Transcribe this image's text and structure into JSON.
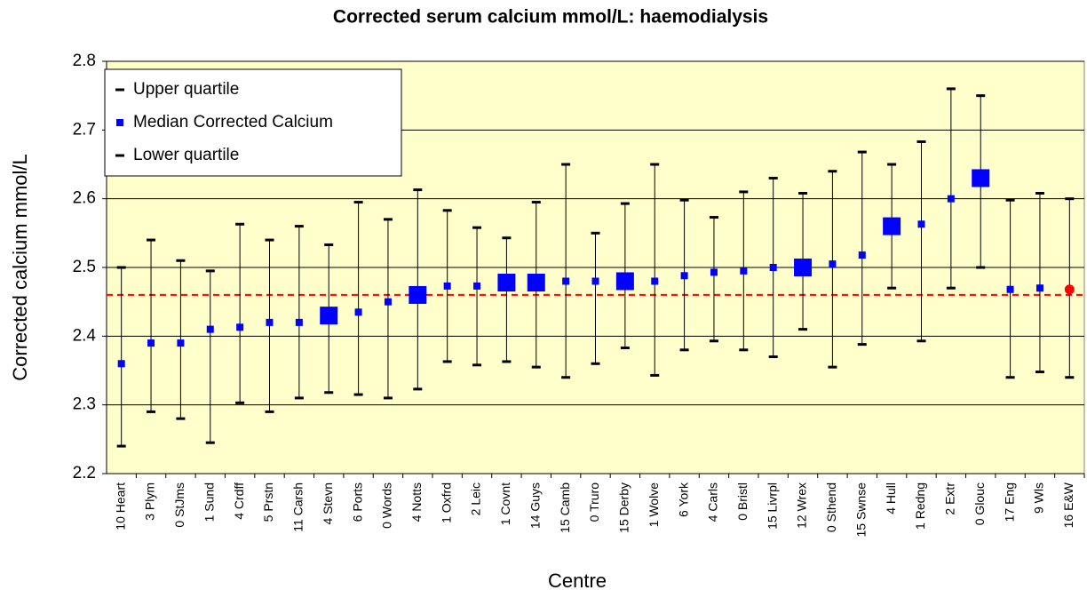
{
  "chart_data": {
    "type": "errorbar",
    "title": "Corrected serum calcium mmol/L: haemodialysis",
    "x_label": "Centre",
    "y_label": "Corrected calcium mmol/L",
    "categories": [
      "10 Heart",
      "3 Plym",
      "0 StJms",
      "1 Sund",
      "4 Crdff",
      "5 Prstn",
      "11 Carsh",
      "4 Stevn",
      "6 Ports",
      "0 Words",
      "4 Notts",
      "1 Oxfrd",
      "2 Leic",
      "1 Covnt",
      "14 Guys",
      "15 Camb",
      "0 Truro",
      "15 Derby",
      "1 Wolve",
      "6 York",
      "4 Carls",
      "0 Bristl",
      "15 Livrpl",
      "12 Wrex",
      "0 Sthend",
      "15 Swnse",
      "4 Hull",
      "1 Redng",
      "2 Extr",
      "0 Glouc",
      "17 Eng",
      "9 Wls",
      "16 E&W"
    ],
    "series": [
      {
        "name": "Upper quartile",
        "color": "#000000",
        "values": [
          2.5,
          2.54,
          2.51,
          2.495,
          2.563,
          2.54,
          2.56,
          2.533,
          2.595,
          2.57,
          2.613,
          2.583,
          2.558,
          2.543,
          2.595,
          2.65,
          2.55,
          2.593,
          2.65,
          2.598,
          2.573,
          2.61,
          2.63,
          2.608,
          2.64,
          2.668,
          2.65,
          2.683,
          2.76,
          2.75,
          2.598,
          2.608,
          2.6
        ]
      },
      {
        "name": "Median Corrected Calcium",
        "color": "#0000ff",
        "values": [
          2.36,
          2.39,
          2.39,
          2.41,
          2.413,
          2.42,
          2.42,
          2.43,
          2.435,
          2.45,
          2.46,
          2.473,
          2.473,
          2.478,
          2.478,
          2.48,
          2.48,
          2.48,
          2.48,
          2.488,
          2.493,
          2.495,
          2.5,
          2.5,
          2.505,
          2.518,
          2.56,
          2.563,
          2.6,
          2.63,
          2.468,
          2.47,
          2.468
        ],
        "large": [
          false,
          false,
          false,
          false,
          false,
          false,
          false,
          true,
          false,
          false,
          true,
          false,
          false,
          true,
          true,
          false,
          false,
          true,
          false,
          false,
          false,
          false,
          false,
          true,
          false,
          false,
          true,
          false,
          false,
          true,
          false,
          false,
          false
        ],
        "point_colors": {
          "32": "#ff0000"
        },
        "point_shapes": {
          "32": "circle"
        }
      },
      {
        "name": "Lower quartile",
        "color": "#000000",
        "values": [
          2.24,
          2.29,
          2.28,
          2.245,
          2.303,
          2.29,
          2.31,
          2.318,
          2.315,
          2.31,
          2.323,
          2.363,
          2.358,
          2.363,
          2.355,
          2.34,
          2.36,
          2.383,
          2.343,
          2.38,
          2.393,
          2.38,
          2.37,
          2.41,
          2.355,
          2.388,
          2.47,
          2.393,
          2.47,
          2.5,
          2.34,
          2.348,
          2.34
        ]
      }
    ],
    "reference_line": {
      "value": 2.46,
      "color": "#ff0000"
    },
    "ylim": [
      2.2,
      2.8
    ],
    "yticks": [
      2.2,
      2.3,
      2.4,
      2.5,
      2.6,
      2.7,
      2.8
    ],
    "grid": true,
    "legend": "upper-left",
    "background": "#ffffcc"
  }
}
